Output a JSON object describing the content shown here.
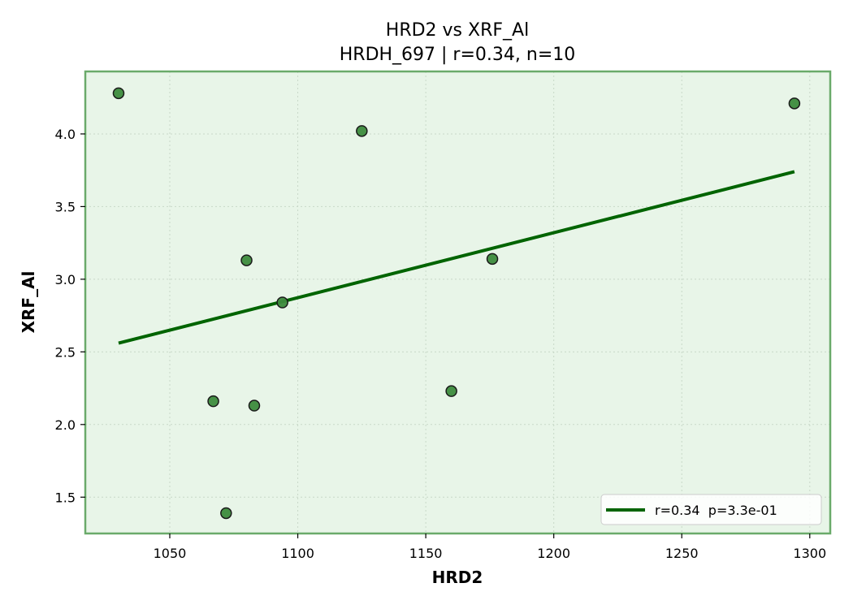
{
  "chart_data": {
    "type": "scatter",
    "title": "HRD2 vs XRF_Al",
    "subtitle": "HRDH_697 | r=0.34, n=10",
    "xlabel": "HRD2",
    "ylabel": "XRF_Al",
    "xlim": [
      1017,
      1308
    ],
    "ylim": [
      1.25,
      4.43
    ],
    "xticks": [
      1050,
      1100,
      1150,
      1200,
      1250,
      1300
    ],
    "yticks": [
      1.5,
      2.0,
      2.5,
      3.0,
      3.5,
      4.0
    ],
    "xtick_labels": [
      "1050",
      "1100",
      "1150",
      "1200",
      "1250",
      "1300"
    ],
    "ytick_labels": [
      "1.5",
      "2.0",
      "2.5",
      "3.0",
      "3.5",
      "4.0"
    ],
    "grid": true,
    "legend_position": "bottom-right",
    "colors": {
      "point_fill": "#3d8b3d",
      "point_edge": "#1a1a1a",
      "line": "#006400",
      "plot_bg": "#e8f5e8",
      "spine": "#6aaa6a",
      "grid": "#c8d8c8"
    },
    "points": [
      {
        "x": 1030,
        "y": 4.28
      },
      {
        "x": 1125,
        "y": 4.02
      },
      {
        "x": 1294,
        "y": 4.21
      },
      {
        "x": 1080,
        "y": 3.13
      },
      {
        "x": 1176,
        "y": 3.14
      },
      {
        "x": 1094,
        "y": 2.84
      },
      {
        "x": 1067,
        "y": 2.16
      },
      {
        "x": 1083,
        "y": 2.13
      },
      {
        "x": 1160,
        "y": 2.23
      },
      {
        "x": 1072,
        "y": 1.39
      }
    ],
    "series": [
      {
        "name": "r=0.34  p=3.3e-01",
        "type": "line",
        "x": [
          1030,
          1294
        ],
        "y": [
          2.56,
          3.74
        ]
      }
    ]
  }
}
